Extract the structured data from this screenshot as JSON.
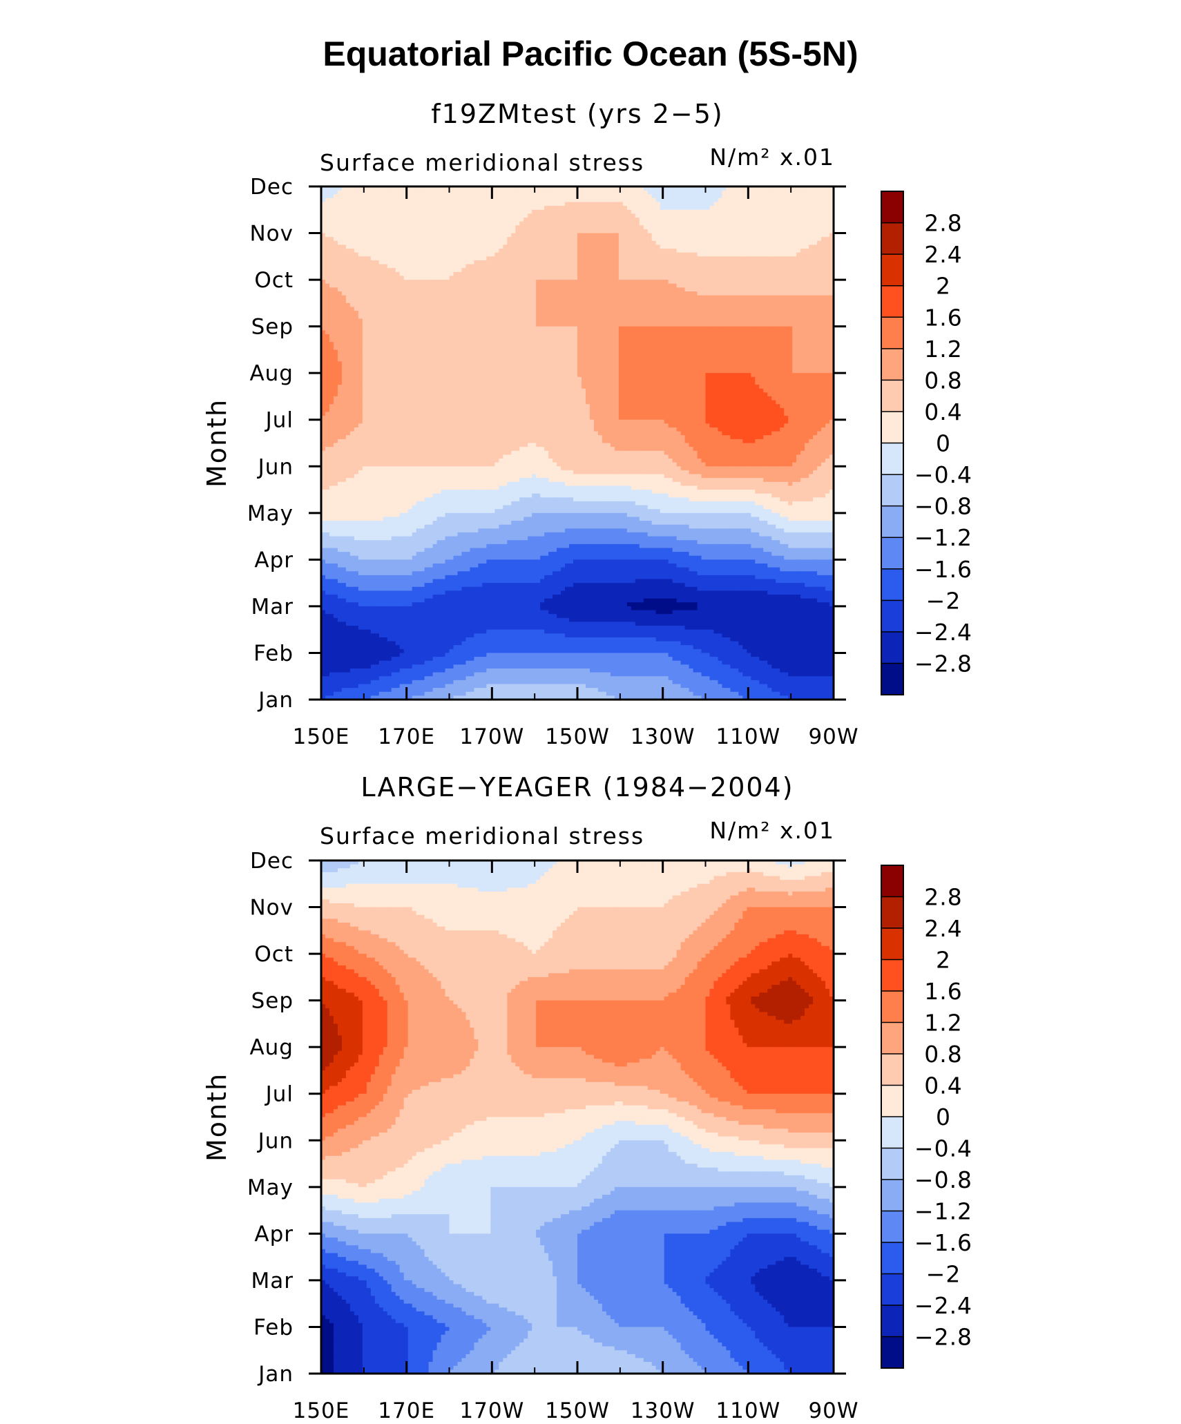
{
  "title": "Equatorial Pacific Ocean (5S-5N)",
  "colorbar": {
    "labels": [
      "2.8",
      "2.4",
      "2",
      "1.6",
      "1.2",
      "0.8",
      "0.4",
      "0",
      "−0.4",
      "−0.8",
      "−1.2",
      "−1.6",
      "−2",
      "−2.4",
      "−2.8"
    ],
    "colors": [
      "#8b0000",
      "#b22000",
      "#d93200",
      "#ff5020",
      "#ff7f4c",
      "#ffa57d",
      "#ffcbb0",
      "#ffe9d9",
      "#d6e7fb",
      "#b3cbf7",
      "#8aacf5",
      "#5e88f3",
      "#2c5cee",
      "#1a3ed9",
      "#0d24b8",
      "#000d88"
    ]
  },
  "chart_data": [
    {
      "type": "heatmap",
      "title": "f19ZMtest (yrs 2−5)",
      "subtitle_left": "Surface meridional stress",
      "subtitle_right": "N/m² x.01",
      "xlabel": "",
      "ylabel": "Month",
      "x_ticks": [
        "150E",
        "170E",
        "170W",
        "150W",
        "130W",
        "110W",
        "90W"
      ],
      "y_ticks": [
        "Jan",
        "Feb",
        "Mar",
        "Apr",
        "May",
        "Jun",
        "Jul",
        "Aug",
        "Sep",
        "Oct",
        "Nov",
        "Dec"
      ],
      "x": [
        150,
        160,
        170,
        180,
        190,
        200,
        210,
        220,
        230,
        240,
        250,
        260,
        270
      ],
      "y": [
        1,
        2,
        3,
        4,
        5,
        6,
        7,
        8,
        9,
        10,
        11,
        12
      ],
      "z": [
        [
          -2.0,
          -1.6,
          -1.2,
          -0.8,
          -0.4,
          -0.4,
          -0.4,
          -0.8,
          -0.8,
          -1.2,
          -1.6,
          -2.0,
          -2.4
        ],
        [
          -2.8,
          -2.8,
          -2.4,
          -2.0,
          -1.6,
          -1.6,
          -1.6,
          -1.6,
          -1.6,
          -2.0,
          -2.4,
          -2.8,
          -2.4
        ],
        [
          -2.4,
          -2.0,
          -2.0,
          -2.4,
          -2.4,
          -2.4,
          -2.8,
          -2.8,
          -3.0,
          -2.8,
          -2.8,
          -2.8,
          -2.4
        ],
        [
          -1.2,
          -0.8,
          -0.8,
          -1.2,
          -1.6,
          -1.6,
          -2.0,
          -2.0,
          -2.0,
          -1.6,
          -1.6,
          -1.2,
          -1.2
        ],
        [
          0.2,
          0.2,
          0.0,
          -0.4,
          -0.4,
          -0.8,
          -0.8,
          -0.8,
          -0.4,
          -0.4,
          -0.4,
          0.2,
          0.2
        ],
        [
          0.6,
          0.4,
          0.4,
          0.4,
          0.4,
          0.2,
          0.6,
          0.6,
          0.6,
          1.2,
          1.2,
          1.2,
          0.6
        ],
        [
          1.2,
          0.8,
          0.6,
          0.6,
          0.6,
          0.6,
          0.6,
          1.2,
          1.2,
          1.6,
          2.0,
          1.6,
          1.2
        ],
        [
          1.6,
          0.8,
          0.6,
          0.6,
          0.6,
          0.6,
          0.8,
          1.2,
          1.2,
          1.6,
          1.6,
          1.2,
          1.2
        ],
        [
          1.2,
          0.8,
          0.6,
          0.6,
          0.6,
          0.8,
          0.8,
          1.2,
          1.2,
          1.2,
          1.2,
          1.2,
          0.8
        ],
        [
          0.8,
          0.6,
          0.4,
          0.4,
          0.6,
          0.8,
          0.8,
          0.8,
          0.8,
          0.6,
          0.6,
          0.6,
          0.8
        ],
        [
          0.4,
          0.2,
          0.2,
          0.2,
          0.2,
          0.6,
          0.8,
          0.8,
          0.2,
          0.2,
          0.2,
          0.2,
          0.4
        ],
        [
          -0.2,
          0.2,
          0.2,
          0.2,
          0.2,
          0.2,
          0.2,
          0.2,
          -0.2,
          -0.2,
          0.2,
          0.2,
          0.2
        ]
      ]
    },
    {
      "type": "heatmap",
      "title": "LARGE−YEAGER (1984−2004)",
      "subtitle_left": "Surface meridional stress",
      "subtitle_right": "N/m² x.01",
      "xlabel": "",
      "ylabel": "Month",
      "x_ticks": [
        "150E",
        "170E",
        "170W",
        "150W",
        "130W",
        "110W",
        "90W"
      ],
      "y_ticks": [
        "Jan",
        "Feb",
        "Mar",
        "Apr",
        "May",
        "Jun",
        "Jul",
        "Aug",
        "Sep",
        "Oct",
        "Nov",
        "Dec"
      ],
      "x": [
        150,
        160,
        170,
        180,
        190,
        200,
        210,
        220,
        230,
        240,
        250,
        260,
        270
      ],
      "y": [
        1,
        2,
        3,
        4,
        5,
        6,
        7,
        8,
        9,
        10,
        11,
        12
      ],
      "z": [
        [
          -3.0,
          -2.4,
          -2.0,
          -1.2,
          -0.8,
          -0.4,
          -0.4,
          -0.4,
          -0.8,
          -1.2,
          -1.6,
          -2.0,
          -2.0
        ],
        [
          -3.0,
          -2.4,
          -2.0,
          -1.6,
          -1.2,
          -0.8,
          -0.8,
          -1.2,
          -1.2,
          -1.6,
          -2.0,
          -2.4,
          -2.4
        ],
        [
          -2.4,
          -2.0,
          -1.2,
          -0.8,
          -0.4,
          -0.4,
          -1.2,
          -1.6,
          -1.6,
          -2.0,
          -2.4,
          -2.8,
          -2.4
        ],
        [
          -1.2,
          -0.8,
          -0.8,
          -0.4,
          -0.4,
          -0.8,
          -1.2,
          -1.6,
          -1.6,
          -1.6,
          -2.0,
          -2.0,
          -1.6
        ],
        [
          0.2,
          0.4,
          0.2,
          -0.4,
          -0.4,
          -0.4,
          -0.4,
          -0.8,
          -0.8,
          -0.8,
          -0.8,
          -0.8,
          -0.4
        ],
        [
          1.2,
          0.8,
          0.6,
          0.4,
          0.2,
          0.2,
          0.0,
          -0.4,
          -0.4,
          0.2,
          0.4,
          0.6,
          0.6
        ],
        [
          2.0,
          1.6,
          0.8,
          0.6,
          0.6,
          0.6,
          0.6,
          0.6,
          0.8,
          1.2,
          1.6,
          1.6,
          1.6
        ],
        [
          2.8,
          2.0,
          1.2,
          1.2,
          0.6,
          1.2,
          1.2,
          1.6,
          1.2,
          1.6,
          2.0,
          2.0,
          2.0
        ],
        [
          2.4,
          2.0,
          1.2,
          0.8,
          0.6,
          1.2,
          1.2,
          1.2,
          1.2,
          1.6,
          2.4,
          2.8,
          2.0
        ],
        [
          1.6,
          1.2,
          0.8,
          0.6,
          0.6,
          0.4,
          0.6,
          0.6,
          0.6,
          1.2,
          1.6,
          2.0,
          1.6
        ],
        [
          0.6,
          0.4,
          0.4,
          0.2,
          0.2,
          0.2,
          0.4,
          0.4,
          0.4,
          0.6,
          1.2,
          1.2,
          1.2
        ],
        [
          -0.8,
          -0.4,
          -0.4,
          -0.2,
          -0.4,
          -0.2,
          0.2,
          0.2,
          0.2,
          0.2,
          0.2,
          -0.2,
          0.2
        ]
      ]
    }
  ]
}
